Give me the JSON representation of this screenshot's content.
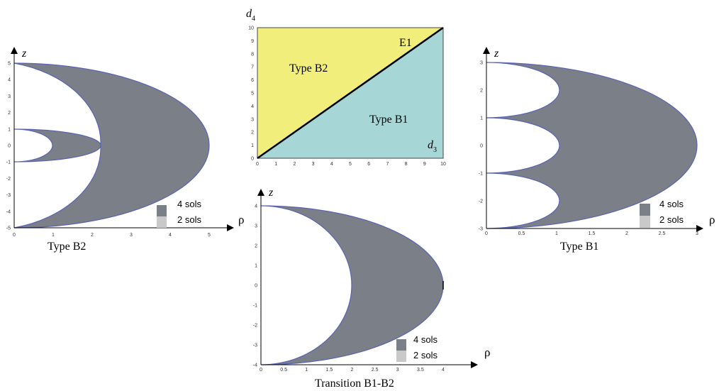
{
  "colors": {
    "four_sols": "#7a7f88",
    "two_sols": "#c9c9c9",
    "boundary": "#5b63b3",
    "type_b2_region": "#f2ee7c",
    "type_b1_region": "#a6d6d6"
  },
  "legend": {
    "four": "4 sols",
    "two": "2 sols"
  },
  "axes": {
    "z": "z",
    "rho": "ρ"
  },
  "panels": {
    "b2": {
      "caption": "Type B2",
      "x_ticks": [
        "0",
        "1",
        "2",
        "3",
        "4",
        "5"
      ],
      "y_ticks": [
        "5",
        "4",
        "3",
        "2",
        "1",
        "0",
        "-1",
        "-2",
        "-3",
        "-4",
        "-5"
      ]
    },
    "b1": {
      "caption": "Type B1",
      "x_ticks": [
        "0",
        "0.5",
        "1",
        "1.5",
        "2",
        "2.5",
        "3"
      ],
      "y_ticks": [
        "3",
        "2",
        "1",
        "0",
        "-1",
        "-2",
        "-3"
      ]
    },
    "transition": {
      "caption": "Transition B1-B2",
      "x_ticks": [
        "0",
        "0.5",
        "1",
        "1.5",
        "2",
        "2.5",
        "3",
        "3.5",
        "4"
      ],
      "y_ticks": [
        "4",
        "3",
        "2",
        "1",
        "0",
        "-1",
        "-2",
        "-3",
        "-4"
      ]
    }
  },
  "phase": {
    "x_label": "d",
    "x_label_sub": "3",
    "y_label": "d",
    "y_label_sub": "4",
    "x_ticks": [
      "0",
      "1",
      "2",
      "3",
      "4",
      "5",
      "6",
      "7",
      "8",
      "9",
      "10"
    ],
    "y_ticks": [
      "10",
      "9",
      "8",
      "7",
      "6",
      "5",
      "4",
      "3",
      "2",
      "1",
      "0"
    ],
    "region_b2": "Type B2",
    "region_b1": "Type B1",
    "line_label": "E1"
  }
}
